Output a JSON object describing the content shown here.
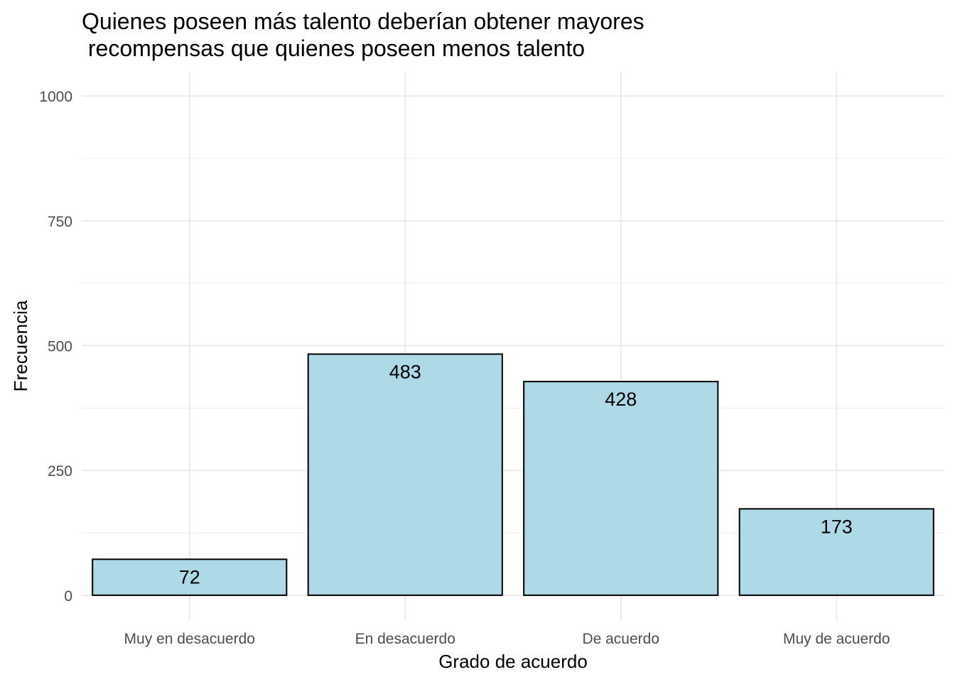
{
  "chart_data": {
    "type": "bar",
    "title_lines": [
      "Quienes poseen más talento deberían obtener mayores",
      " recompensas que quienes poseen menos talento"
    ],
    "xlabel": "Grado de acuerdo",
    "ylabel": "Frecuencia",
    "categories": [
      "Muy en desacuerdo",
      "En desacuerdo",
      "De acuerdo",
      "Muy de acuerdo"
    ],
    "values": [
      72,
      483,
      428,
      173
    ],
    "data_labels": [
      "72",
      "483",
      "428",
      "173"
    ],
    "yticks": [
      0,
      250,
      500,
      750,
      1000
    ],
    "ytick_labels": [
      "0",
      "250",
      "500",
      "750",
      "1000"
    ],
    "ylim": [
      -50,
      1050
    ],
    "grid": true,
    "colors": {
      "bar_fill": "#add8e6",
      "bar_stroke": "#000000",
      "grid": "#ebebeb"
    }
  }
}
